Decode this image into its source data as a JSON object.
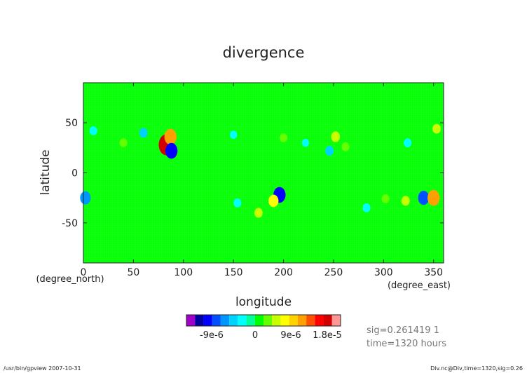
{
  "chart_data": {
    "type": "heatmap",
    "title": "divergence",
    "xlabel": "longitude",
    "ylabel": "latitude",
    "x_unit": "(degree_east)",
    "y_unit": "(degree_north)",
    "xlim": [
      0,
      360
    ],
    "ylim": [
      -90,
      90
    ],
    "x_ticks": [
      0,
      50,
      100,
      150,
      200,
      250,
      300,
      350
    ],
    "y_ticks": [
      -50,
      0,
      50
    ],
    "background_value": 0,
    "colorbar": {
      "colors": [
        "#a000c8",
        "#0000a0",
        "#0000ff",
        "#0050ff",
        "#0096ff",
        "#00d2ff",
        "#00ffff",
        "#00ff96",
        "#00ff00",
        "#64ff00",
        "#c8ff00",
        "#ffff00",
        "#ffd200",
        "#ffa000",
        "#ff5000",
        "#ff0000",
        "#d20000",
        "#ff9696"
      ],
      "tick_labels": [
        "-9e-6",
        "0",
        "9e-6",
        "1.8e-5"
      ]
    },
    "features": [
      {
        "lon": 83,
        "lat": 28,
        "value": 1.8e-05
      },
      {
        "lon": 87,
        "lat": 36,
        "value": 1.2e-05
      },
      {
        "lon": 88,
        "lat": 22,
        "value": -1.2e-05
      },
      {
        "lon": 60,
        "lat": 40,
        "value": -5e-06
      },
      {
        "lon": 196,
        "lat": -22,
        "value": -1.2e-05
      },
      {
        "lon": 190,
        "lat": -28,
        "value": 8e-06
      },
      {
        "lon": 340,
        "lat": -25,
        "value": -1e-05
      },
      {
        "lon": 350,
        "lat": -25,
        "value": 1.2e-05
      },
      {
        "lon": 2,
        "lat": -25,
        "value": -9e-06
      },
      {
        "lon": 10,
        "lat": 42,
        "value": -4e-06
      },
      {
        "lon": 252,
        "lat": 36,
        "value": 6e-06
      },
      {
        "lon": 246,
        "lat": 22,
        "value": -5e-06
      },
      {
        "lon": 262,
        "lat": 26,
        "value": 4e-06
      },
      {
        "lon": 324,
        "lat": 30,
        "value": -4e-06
      },
      {
        "lon": 353,
        "lat": 44,
        "value": 5e-06
      },
      {
        "lon": 154,
        "lat": -30,
        "value": -4e-06
      },
      {
        "lon": 175,
        "lat": -40,
        "value": 5e-06
      },
      {
        "lon": 302,
        "lat": -26,
        "value": 4e-06
      },
      {
        "lon": 283,
        "lat": -35,
        "value": -4e-06
      },
      {
        "lon": 322,
        "lat": -28,
        "value": 5e-06
      },
      {
        "lon": 40,
        "lat": 30,
        "value": 4e-06
      },
      {
        "lon": 150,
        "lat": 38,
        "value": -3e-06
      },
      {
        "lon": 200,
        "lat": 35,
        "value": 4e-06
      },
      {
        "lon": 222,
        "lat": 30,
        "value": -3e-06
      }
    ]
  },
  "info": {
    "sig_label": "sig=0.261419 1",
    "time_label": "time=1320 hours"
  },
  "footer": {
    "left": "/usr/bin/gpview  2007-10-31",
    "right": "Div.nc@Div,time=1320,sig=0.26"
  }
}
